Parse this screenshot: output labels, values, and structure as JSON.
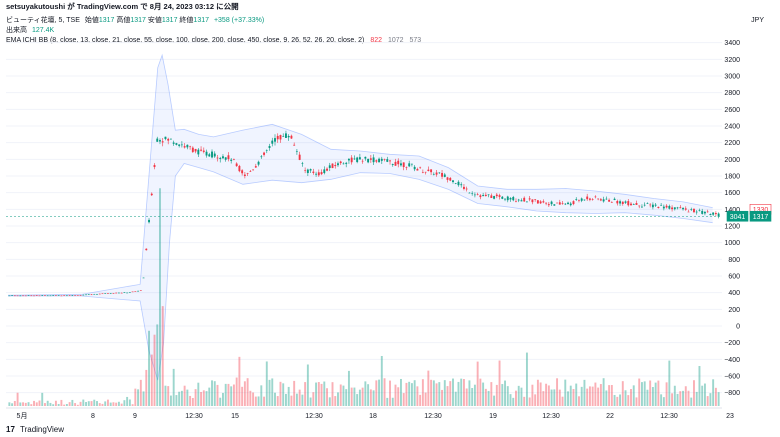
{
  "header": {
    "publish_line": "setsuyakutoushi が TradingView.com で 8月 24, 2023 03:12 に公開",
    "currency": "JPY"
  },
  "legend": {
    "symbol": "ビューティ花壇, 5, TSE",
    "open_label": "始値",
    "open": "1317",
    "high_label": "高値",
    "high": "1317",
    "low_label": "安値",
    "low": "1317",
    "close_label": "終値",
    "close": "1317",
    "change": "+358 (+37.33%)",
    "volume_label": "出来高",
    "volume": "127.4K",
    "indicator": "EMA ICHI BB (8, close, 13, close, 21, close, 55, close, 100, close, 200, close, 450, close, 9, 26, 52, 26, 20, close, 2)",
    "ind_v1": "822",
    "ind_v2": "1072",
    "ind_v3": "573"
  },
  "footer": {
    "brand": "TradingView",
    "logo": "17"
  },
  "colors": {
    "up": "#089981",
    "down": "#f23645",
    "band": "#2962ff",
    "grid": "#f0f3fa"
  },
  "chart_data": {
    "type": "candlestick",
    "yaxis_ticks": [
      3400,
      3200,
      3000,
      2800,
      2600,
      2400,
      2200,
      2000,
      1800,
      1600,
      1400,
      1200,
      1000,
      800,
      600,
      400,
      200,
      0,
      -200,
      -400,
      -600,
      -800
    ],
    "ylim": [
      -960,
      3480
    ],
    "x_ticks": [
      "5月",
      "8",
      "9",
      "12:30",
      "15",
      "12:30",
      "18",
      "12:30",
      "19",
      "12:30",
      "22",
      "12:30",
      "23"
    ],
    "price_labels": {
      "last": "1317",
      "other": "1330",
      "countdown": "3041"
    },
    "price_path": [
      [
        0,
        365
      ],
      [
        1,
        365
      ],
      [
        2,
        366
      ],
      [
        3,
        367
      ],
      [
        4,
        368
      ],
      [
        5,
        372
      ],
      [
        6,
        385
      ],
      [
        7,
        395
      ],
      [
        8,
        402
      ],
      [
        9,
        430
      ],
      [
        10,
        2250
      ],
      [
        11,
        2230
      ],
      [
        12,
        2150
      ],
      [
        13,
        2080
      ],
      [
        14,
        2050
      ],
      [
        15,
        2010
      ],
      [
        16,
        1800
      ],
      [
        17,
        1990
      ],
      [
        18,
        2250
      ],
      [
        19,
        2300
      ],
      [
        20,
        1870
      ],
      [
        21,
        1830
      ],
      [
        22,
        1930
      ],
      [
        23,
        1990
      ],
      [
        24,
        2000
      ],
      [
        25,
        1990
      ],
      [
        26,
        1960
      ],
      [
        27,
        1930
      ],
      [
        28,
        1870
      ],
      [
        29,
        1830
      ],
      [
        30,
        1760
      ],
      [
        31,
        1630
      ],
      [
        32,
        1560
      ],
      [
        33,
        1550
      ],
      [
        34,
        1530
      ],
      [
        35,
        1510
      ],
      [
        36,
        1490
      ],
      [
        37,
        1460
      ],
      [
        38,
        1470
      ],
      [
        39,
        1540
      ],
      [
        40,
        1520
      ],
      [
        41,
        1500
      ],
      [
        42,
        1470
      ],
      [
        43,
        1450
      ],
      [
        44,
        1440
      ],
      [
        45,
        1420
      ],
      [
        46,
        1390
      ],
      [
        47,
        1360
      ],
      [
        48,
        1330
      ]
    ],
    "band_upper": [
      [
        0,
        370
      ],
      [
        5,
        380
      ],
      [
        9,
        500
      ],
      [
        9.6,
        1800
      ],
      [
        10.2,
        3100
      ],
      [
        10.5,
        3250
      ],
      [
        10.9,
        2900
      ],
      [
        11.4,
        2350
      ],
      [
        12,
        2360
      ],
      [
        13,
        2300
      ],
      [
        14,
        2270
      ],
      [
        16,
        2350
      ],
      [
        18,
        2420
      ],
      [
        20,
        2300
      ],
      [
        22,
        2120
      ],
      [
        24,
        2100
      ],
      [
        26,
        2060
      ],
      [
        28,
        2040
      ],
      [
        30,
        1900
      ],
      [
        32,
        1680
      ],
      [
        34,
        1640
      ],
      [
        36,
        1640
      ],
      [
        38,
        1650
      ],
      [
        40,
        1620
      ],
      [
        42,
        1580
      ],
      [
        44,
        1530
      ],
      [
        46,
        1490
      ],
      [
        48,
        1420
      ]
    ],
    "band_lower": [
      [
        0,
        360
      ],
      [
        5,
        360
      ],
      [
        9,
        300
      ],
      [
        9.6,
        -300
      ],
      [
        10.2,
        -650
      ],
      [
        10.6,
        -200
      ],
      [
        11,
        1000
      ],
      [
        11.4,
        1800
      ],
      [
        12,
        1950
      ],
      [
        13,
        1900
      ],
      [
        14,
        1850
      ],
      [
        16,
        1700
      ],
      [
        18,
        1750
      ],
      [
        20,
        1720
      ],
      [
        22,
        1760
      ],
      [
        24,
        1840
      ],
      [
        26,
        1830
      ],
      [
        28,
        1760
      ],
      [
        30,
        1640
      ],
      [
        32,
        1470
      ],
      [
        34,
        1430
      ],
      [
        36,
        1380
      ],
      [
        38,
        1360
      ],
      [
        40,
        1350
      ],
      [
        42,
        1360
      ],
      [
        44,
        1330
      ],
      [
        46,
        1290
      ],
      [
        48,
        1240
      ]
    ]
  }
}
